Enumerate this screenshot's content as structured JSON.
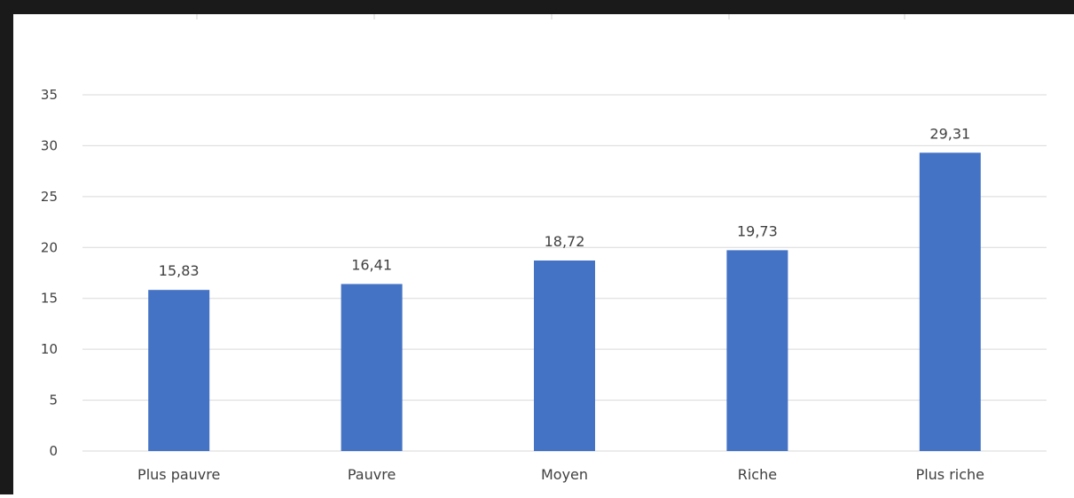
{
  "chart_data": {
    "type": "bar",
    "title": "",
    "xlabel": "",
    "ylabel": "",
    "categories": [
      "Plus pauvre",
      "Pauvre",
      "Moyen",
      "Riche",
      "Plus riche"
    ],
    "values": [
      15.83,
      16.41,
      18.72,
      19.73,
      29.31
    ],
    "data_labels": [
      "15,83",
      "16,41",
      "18,72",
      "19,73",
      "29,31"
    ],
    "y_ticks": [
      "0",
      "5",
      "10",
      "15",
      "20",
      "25",
      "30",
      "35"
    ],
    "ylim": [
      0,
      35
    ],
    "grid": true,
    "legend": "none",
    "colors": {
      "bar": "#4472C4",
      "grid": "#D9D9D9",
      "text": "#404040",
      "border": "#1a1a1a"
    }
  }
}
